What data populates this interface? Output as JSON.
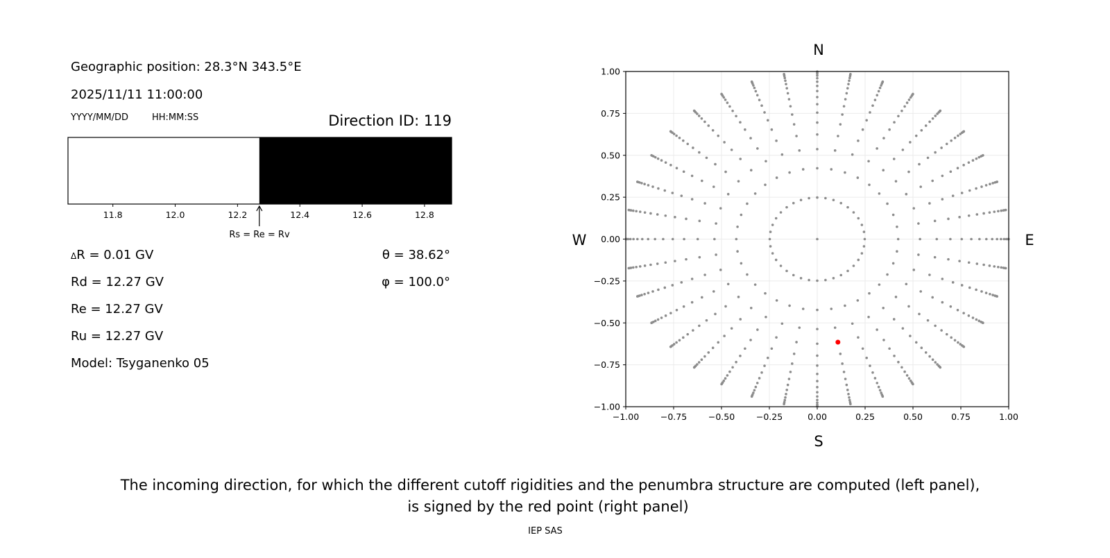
{
  "left_panel": {
    "geo_position": "Geographic position: 28.3°N 343.5°E",
    "datetime": "2025/11/11 11:00:00",
    "date_format": "YYYY/MM/DD",
    "time_format": "HH:MM:SS",
    "direction_id": "Direction ID: 119",
    "penumbra_annotation": "Rs = Re = Rv",
    "delta_r": "R = 0.01 GV",
    "delta_symbol": "Δ",
    "rd": "Rd = 12.27 GV",
    "re": "Re = 12.27 GV",
    "ru": "Ru = 12.27 GV",
    "model": "Model: Tsyganenko 05",
    "theta": "θ = 38.62°",
    "phi": "φ = 100.0°"
  },
  "caption": {
    "line1": "The incoming direction, for which the different cutoff rigidities and the penumbra structure are computed (left panel),",
    "line2": "is signed by the red point (right panel)",
    "credit": "IEP SAS"
  },
  "chart_data": [
    {
      "type": "bar",
      "description_kind": "penumbra",
      "xlim": [
        11.656,
        12.887
      ],
      "xticks": [
        "11.8",
        "12.0",
        "12.2",
        "12.4",
        "12.6",
        "12.8"
      ],
      "xtick_values": [
        11.8,
        12.0,
        12.2,
        12.4,
        12.6,
        12.8
      ],
      "segments": [
        {
          "from": 11.656,
          "to": 12.27,
          "color": "#ffffff"
        },
        {
          "from": 12.27,
          "to": 12.887,
          "color": "#000000"
        }
      ],
      "cutoff_marker": 12.27
    },
    {
      "type": "scatter",
      "xlim": [
        -1,
        1
      ],
      "ylim": [
        -1,
        1
      ],
      "grid": true,
      "xticks": [
        "−1.00",
        "−0.75",
        "−0.50",
        "−0.25",
        "0.00",
        "0.25",
        "0.50",
        "0.75",
        "1.00"
      ],
      "yticks": [
        "−1.00",
        "−0.75",
        "−0.50",
        "−0.25",
        "0.00",
        "0.25",
        "0.50",
        "0.75",
        "1.00"
      ],
      "tick_values": [
        -1,
        -0.75,
        -0.5,
        -0.25,
        0,
        0.25,
        0.5,
        0.75,
        1
      ],
      "compass": {
        "north": "N",
        "south": "S",
        "west": "W",
        "east": "E"
      },
      "directions": {
        "center_point": true,
        "cos_theta_rings": [
          0.96875,
          0.90625,
          0.84375,
          0.78125,
          0.71875,
          0.65625,
          0.59375,
          0.53125,
          0.46875,
          0.40625,
          0.34375,
          0.28125,
          0.21875,
          0.15625,
          0.09375,
          0.03125
        ],
        "phi_step_deg": 10,
        "color": "#8c8c8c"
      },
      "selected": {
        "theta_deg": 38.62,
        "phi_deg": 100.0,
        "x": 0.108,
        "y": -0.615,
        "color": "#ff0000"
      }
    }
  ]
}
